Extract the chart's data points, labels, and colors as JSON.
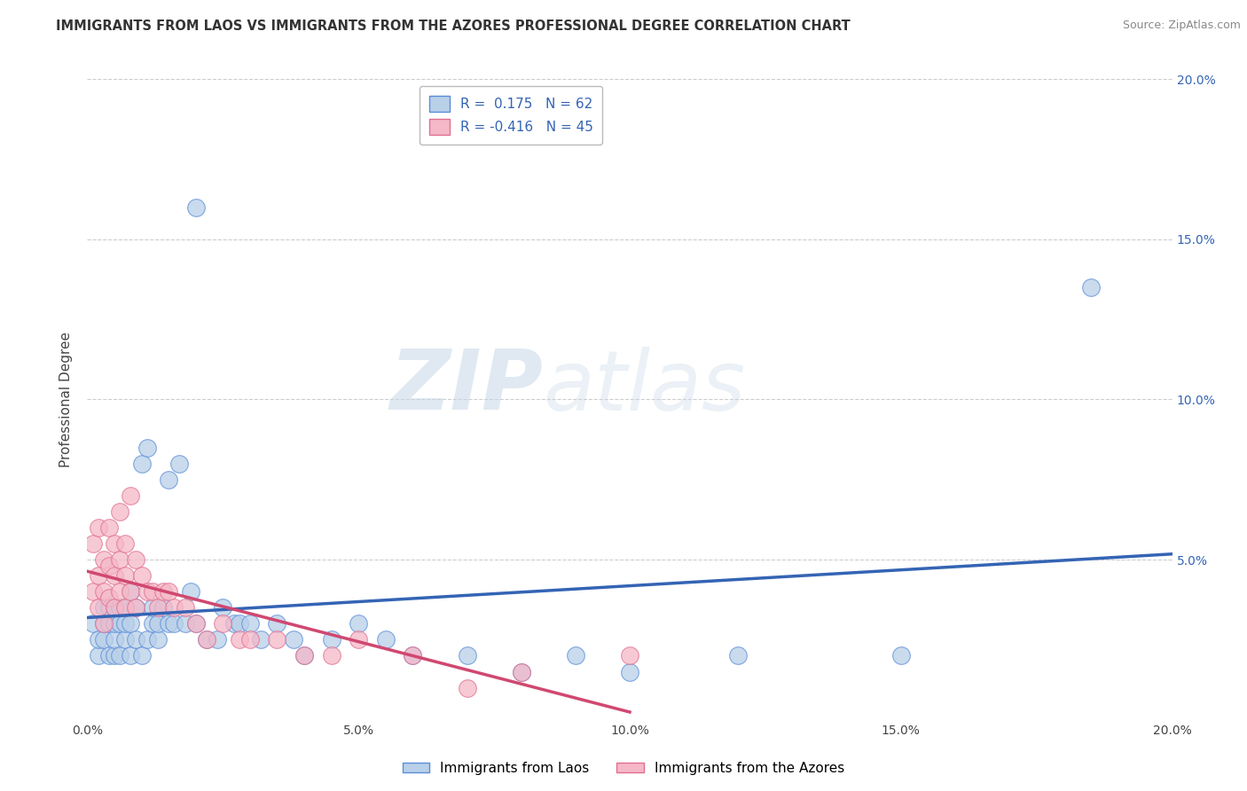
{
  "title": "IMMIGRANTS FROM LAOS VS IMMIGRANTS FROM THE AZORES PROFESSIONAL DEGREE CORRELATION CHART",
  "source": "Source: ZipAtlas.com",
  "ylabel": "Professional Degree",
  "xlim": [
    0.0,
    0.2
  ],
  "ylim": [
    0.0,
    0.2
  ],
  "blue_R": 0.175,
  "blue_N": 62,
  "pink_R": -0.416,
  "pink_N": 45,
  "blue_color": "#b8d0e8",
  "blue_edge_color": "#5b8dd9",
  "blue_line_color": "#3464b4",
  "pink_color": "#f5b8c8",
  "pink_edge_color": "#e07090",
  "pink_line_color": "#d04870",
  "legend_label_blue": "Immigrants from Laos",
  "legend_label_pink": "Immigrants from the Azores",
  "watermark_zip": "ZIP",
  "watermark_atlas": "atlas",
  "background_color": "#ffffff",
  "grid_color": "#cccccc",
  "blue_x": [
    0.001,
    0.002,
    0.002,
    0.003,
    0.003,
    0.003,
    0.004,
    0.004,
    0.004,
    0.005,
    0.005,
    0.005,
    0.005,
    0.006,
    0.006,
    0.006,
    0.007,
    0.007,
    0.007,
    0.008,
    0.008,
    0.008,
    0.009,
    0.009,
    0.01,
    0.01,
    0.011,
    0.011,
    0.012,
    0.012,
    0.013,
    0.013,
    0.014,
    0.015,
    0.015,
    0.016,
    0.017,
    0.018,
    0.019,
    0.02,
    0.022,
    0.024,
    0.025,
    0.027,
    0.028,
    0.03,
    0.032,
    0.035,
    0.038,
    0.04,
    0.045,
    0.05,
    0.055,
    0.06,
    0.07,
    0.08,
    0.09,
    0.1,
    0.12,
    0.15,
    0.185,
    0.02
  ],
  "blue_y": [
    0.03,
    0.02,
    0.025,
    0.025,
    0.03,
    0.035,
    0.02,
    0.03,
    0.035,
    0.02,
    0.025,
    0.03,
    0.035,
    0.02,
    0.03,
    0.035,
    0.025,
    0.03,
    0.035,
    0.02,
    0.03,
    0.04,
    0.025,
    0.035,
    0.02,
    0.08,
    0.025,
    0.085,
    0.03,
    0.035,
    0.025,
    0.03,
    0.035,
    0.03,
    0.075,
    0.03,
    0.08,
    0.03,
    0.04,
    0.03,
    0.025,
    0.025,
    0.035,
    0.03,
    0.03,
    0.03,
    0.025,
    0.03,
    0.025,
    0.02,
    0.025,
    0.03,
    0.025,
    0.02,
    0.02,
    0.015,
    0.02,
    0.015,
    0.02,
    0.02,
    0.135,
    0.16
  ],
  "pink_x": [
    0.001,
    0.001,
    0.002,
    0.002,
    0.002,
    0.003,
    0.003,
    0.003,
    0.004,
    0.004,
    0.004,
    0.005,
    0.005,
    0.005,
    0.006,
    0.006,
    0.006,
    0.007,
    0.007,
    0.007,
    0.008,
    0.008,
    0.009,
    0.009,
    0.01,
    0.011,
    0.012,
    0.013,
    0.014,
    0.015,
    0.016,
    0.018,
    0.02,
    0.022,
    0.025,
    0.028,
    0.03,
    0.035,
    0.04,
    0.045,
    0.05,
    0.06,
    0.07,
    0.08,
    0.1
  ],
  "pink_y": [
    0.04,
    0.055,
    0.035,
    0.045,
    0.06,
    0.03,
    0.04,
    0.05,
    0.038,
    0.048,
    0.06,
    0.035,
    0.045,
    0.055,
    0.04,
    0.05,
    0.065,
    0.035,
    0.045,
    0.055,
    0.04,
    0.07,
    0.035,
    0.05,
    0.045,
    0.04,
    0.04,
    0.035,
    0.04,
    0.04,
    0.035,
    0.035,
    0.03,
    0.025,
    0.03,
    0.025,
    0.025,
    0.025,
    0.02,
    0.02,
    0.025,
    0.02,
    0.01,
    0.015,
    0.02
  ]
}
